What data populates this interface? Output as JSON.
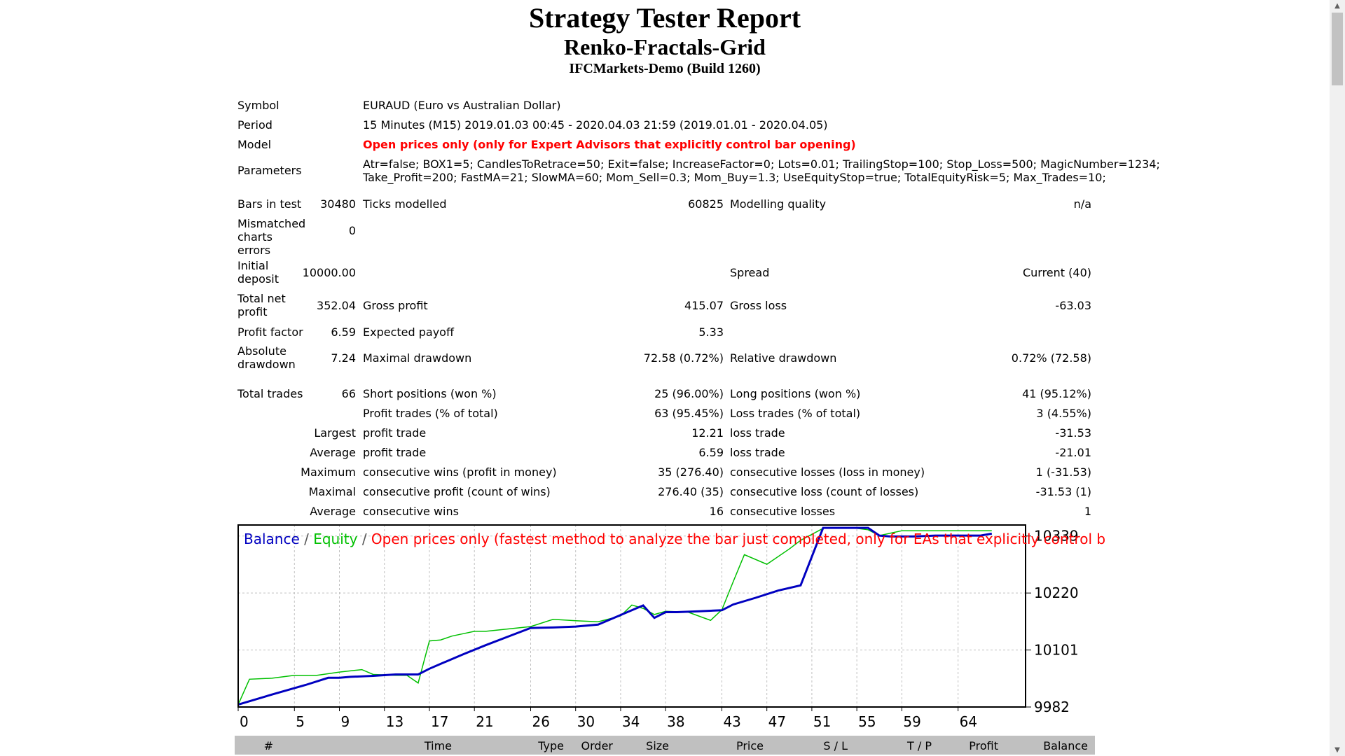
{
  "header": {
    "title": "Strategy Tester Report",
    "ea_name": "Renko-Fractals-Grid",
    "server": "IFCMarkets-Demo (Build 1260)"
  },
  "settings": {
    "symbol_label": "Symbol",
    "symbol": "EURAUD (Euro vs Australian Dollar)",
    "period_label": "Period",
    "period": "15 Minutes (M15) 2019.01.03 00:45 - 2020.04.03 21:59 (2019.01.01 - 2020.04.05)",
    "model_label": "Model",
    "model": "Open prices only (only for Expert Advisors that explicitly control bar opening)",
    "parameters_label": "Parameters",
    "parameters_line1": "Atr=false; BOX1=5; CandlesToRetrace=50; Exit=false; IncreaseFactor=0; Lots=0.01; TrailingStop=100; Stop_Loss=500; MagicNumber=1234;",
    "parameters_line2": "Take_Profit=200; FastMA=21; SlowMA=60; Mom_Sell=0.3; Mom_Buy=1.3; UseEquityStop=true; TotalEquityRisk=5; Max_Trades=10;"
  },
  "stats": {
    "bars_label": "Bars in test",
    "bars": "30480",
    "ticks_label": "Ticks modelled",
    "ticks": "60825",
    "quality_label": "Modelling quality",
    "quality": "n/a",
    "mismatch_label": "Mismatched charts errors",
    "mismatch": "0",
    "deposit_label": "Initial deposit",
    "deposit": "10000.00",
    "spread_label": "Spread",
    "spread": "Current (40)",
    "net_label": "Total net profit",
    "net": "352.04",
    "gross_profit_label": "Gross profit",
    "gross_profit": "415.07",
    "gross_loss_label": "Gross loss",
    "gross_loss": "-63.03",
    "pf_label": "Profit factor",
    "pf": "6.59",
    "payoff_label": "Expected payoff",
    "payoff": "5.33",
    "abs_dd_label": "Absolute drawdown",
    "abs_dd": "7.24",
    "max_dd_label": "Maximal drawdown",
    "max_dd": "72.58 (0.72%)",
    "rel_dd_label": "Relative drawdown",
    "rel_dd": "0.72% (72.58)",
    "trades_label": "Total trades",
    "trades": "66",
    "short_label": "Short positions (won %)",
    "short": "25 (96.00%)",
    "long_label": "Long positions (won %)",
    "long": "41 (95.12%)",
    "ptrades_label": "Profit trades (% of total)",
    "ptrades": "63 (95.45%)",
    "ltrades_label": "Loss trades (% of total)",
    "ltrades": "3 (4.55%)",
    "largest_label": "Largest",
    "largest_profit_label": "profit trade",
    "largest_profit": "12.21",
    "largest_loss_label": "loss trade",
    "largest_loss": "-31.53",
    "average_label": "Average",
    "average_profit_label": "profit trade",
    "average_profit": "6.59",
    "average_loss_label": "loss trade",
    "average_loss": "-21.01",
    "maximum_label": "Maximum",
    "max_wins_label": "consecutive wins (profit in money)",
    "max_wins": "35 (276.40)",
    "max_losses_label": "consecutive losses (loss in money)",
    "max_losses": "1 (-31.53)",
    "maximal_label": "Maximal",
    "maximal_profit_label": "consecutive profit (count of wins)",
    "maximal_profit": "276.40 (35)",
    "maximal_loss_label": "consecutive loss (count of losses)",
    "maximal_loss": "-31.53 (1)",
    "avg_label": "Average",
    "avg_wins_label": "consecutive wins",
    "avg_wins": "16",
    "avg_losses_label": "consecutive losses",
    "avg_losses": "1"
  },
  "chart_legend": {
    "balance": "Balance",
    "sep1": " / ",
    "equity": "Equity",
    "sep2": " / ",
    "model": "Open prices only (fastest method to analyze the bar just completed, only for EAs that explicitly control b"
  },
  "chart_data": {
    "type": "line",
    "xlim": [
      0,
      70
    ],
    "ylim": [
      9982,
      10362
    ],
    "x_ticks": [
      0,
      5,
      9,
      13,
      17,
      21,
      26,
      30,
      34,
      38,
      43,
      47,
      51,
      55,
      59,
      64
    ],
    "y_ticks": [
      9982,
      10101,
      10220,
      10339
    ],
    "colors": {
      "balance": "#0000c0",
      "equity": "#00c000",
      "model_text": "#ff0000",
      "grid": "#c0c0c0"
    },
    "series": [
      {
        "name": "Balance",
        "x": [
          0,
          3,
          6,
          8,
          9,
          10,
          12,
          14,
          16,
          17,
          18,
          20,
          22,
          24,
          26,
          28,
          30,
          32,
          34,
          36,
          37,
          38,
          39,
          41,
          43,
          44,
          46,
          48,
          50,
          52,
          54,
          56,
          57,
          58,
          60,
          62,
          64,
          66,
          67
        ],
        "y": [
          9987,
          10008,
          10028,
          10043,
          10043,
          10045,
          10047,
          10050,
          10050,
          10062,
          10072,
          10092,
          10111,
          10129,
          10147,
          10148,
          10150,
          10154,
          10174,
          10194,
          10168,
          10180,
          10180,
          10182,
          10184,
          10196,
          10210,
          10225,
          10236,
          10356,
          10356,
          10356,
          10340,
          10338,
          10338,
          10340,
          10340,
          10340,
          10344
        ]
      },
      {
        "name": "Equity",
        "x": [
          0,
          1,
          3,
          5,
          7,
          9,
          11,
          12,
          14,
          15,
          16,
          17,
          18,
          19,
          20,
          21,
          22,
          24,
          26,
          28,
          30,
          32,
          34,
          35,
          36,
          37,
          38,
          40,
          42,
          43,
          44,
          45,
          47,
          49,
          50,
          52,
          54,
          55,
          56,
          57,
          59,
          61,
          63,
          65,
          67
        ],
        "y": [
          9987,
          10040,
          10042,
          10048,
          10048,
          10055,
          10060,
          10050,
          10048,
          10048,
          10032,
          10120,
          10122,
          10130,
          10135,
          10140,
          10140,
          10145,
          10150,
          10165,
          10162,
          10160,
          10172,
          10195,
          10188,
          10175,
          10182,
          10180,
          10163,
          10185,
          10243,
          10300,
          10280,
          10312,
          10330,
          10355,
          10355,
          10355,
          10352,
          10340,
          10350,
          10350,
          10350,
          10350,
          10350
        ]
      }
    ]
  },
  "deals_table": {
    "headers": [
      "#",
      "Time",
      "Type",
      "Order",
      "Size",
      "Price",
      "S / L",
      "T / P",
      "Profit",
      "Balance"
    ]
  }
}
